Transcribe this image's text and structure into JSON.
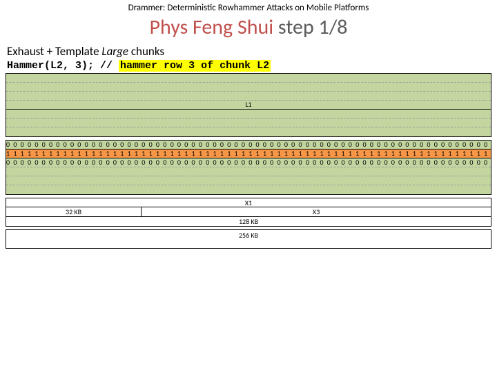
{
  "header": {
    "top": "Drammer: Deterministic Rowhammer Attacks on Mobile Platforms",
    "title_accent": "Phys Feng Shui",
    "title_plain": " step 1/8"
  },
  "subtitle": {
    "prefix": "Exhaust + Template ",
    "italic": "Large",
    "suffix": " chunks"
  },
  "code": {
    "call": "Hammer(L2, 3); ",
    "comment_slash": "// ",
    "comment_text": "hammer row 3 of chunk L2"
  },
  "colors": {
    "green": "#c4d6a0",
    "orange": "#f79646",
    "white": "#ffffff",
    "dashed_border": "#999999",
    "solid_border": "#000000",
    "accent_text": "#c0504d",
    "plain_text": "#595959"
  },
  "block_l1": {
    "label": "L1",
    "rows": [
      {
        "color": "green",
        "border": "dashed",
        "text": ""
      },
      {
        "color": "green",
        "border": "dashed",
        "text": ""
      },
      {
        "color": "green",
        "border": "dashed",
        "text": ""
      },
      {
        "color": "green",
        "border": "solid",
        "text": "L1",
        "is_label": true
      },
      {
        "color": "green",
        "border": "dashed",
        "text": ""
      },
      {
        "color": "green",
        "border": "dashed",
        "text": ""
      },
      {
        "color": "green",
        "border": "none",
        "text": ""
      }
    ]
  },
  "block_l2": {
    "rows": [
      {
        "color": "green",
        "border": "solid",
        "text": "0 0 0 0 0 0 0 0 0 0 0 0 0 0 0 0 0 0 0 0 0 0 0 0 0 0 0 0 0 0 0 0 0 0 0 0 0 0 0 0 0 0 0 0 0 0 0 0 0 0 0 0 0 0 0 0 0 0 0 0 0 0 0 0 0 0 0 0 0 0 0 0 0 0 0 0 0 0 0 0 0 0 0 0 0 0 0 0 0 0 0 0 0 0 0 0 0 0"
      },
      {
        "color": "orange",
        "border": "solid",
        "text": "1 1 1 1 1 1 1 1 1 1 1 1 1 1 1 1 1 1 1 1 1 1 1 1 1 1 1 1 1 1 1 1 1 1 1 1 1 1 1 1 1 1 1 1 1 1 1 1 1 1 1 1 1 1 1 1 1 1 1 1 1 1 1 1 1 1 1 1 1 1 1 1 1 1 1 1 1 1 1 1 1 1 1 1 1 1 1 1 1 1 1 1 1 1 1 1 1 1"
      },
      {
        "color": "green",
        "border": "dashed",
        "text": "0 0 0 0 0 0 0 0 0 0 0 0 0 0 0 0 0 0 0 0 0 0 0 0 0 0 0 0 0 0 0 0 0 0 0 0 0 0 0 0 0 0 0 0 0 0 0 0 0 0 0 0 0 0 0 0 0 0 0 0 0 0 0 0 0 0 0 0 0 0 0 0 0 0 0 0 0 0 0 0 0 0 0 0 0 0 0 0 0 0 0 0 0 0 0 0 0 0"
      },
      {
        "color": "green",
        "border": "dashed",
        "text": ""
      },
      {
        "color": "green",
        "border": "dashed",
        "text": ""
      },
      {
        "color": "green",
        "border": "none",
        "text": ""
      }
    ]
  },
  "split_block": {
    "top_label": "X1",
    "mid_left_label": "32 KB",
    "mid_right_label": "X3",
    "bottom_label": "128 KB"
  },
  "block_256": {
    "label": "256 KB"
  }
}
